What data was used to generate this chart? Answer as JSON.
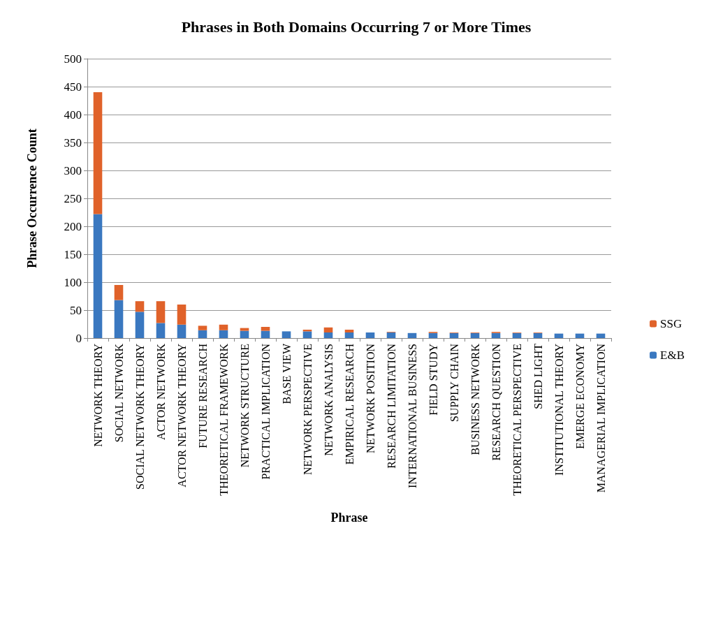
{
  "chart_data": {
    "type": "bar",
    "title": "Phrases in Both Domains Occurring 7 or More Times",
    "xlabel": "Phrase",
    "ylabel": "Phrase Occurrence Count",
    "categories": [
      "NETWORK THEORY",
      "SOCIAL NETWORK",
      "SOCIAL NETWORK THEORY",
      "ACTOR NETWORK",
      "ACTOR NETWORK THEORY",
      "FUTURE RESEARCH",
      "THEORETICAL FRAMEWORK",
      "NETWORK STRUCTURE",
      "PRACTICAL IMPLICATION",
      "BASE VIEW",
      "NETWORK PERSPECTIVE",
      "NETWORK ANALYSIS",
      "EMPIRICAL RESEARCH",
      "NETWORK POSITION",
      "RESEARCH LIMITATION",
      "INTERNATIONAL BUSINESS",
      "FIELD STUDY",
      "SUPPLY CHAIN",
      "BUSINESS NETWORK",
      "RESEARCH QUESTION",
      "THEORETICAL PERSPECTIVE",
      "SHED LIGHT",
      "INSTITUTIONAL THEORY",
      "EMERGE ECONOMY",
      "MANAGERIAL IMPLICATION"
    ],
    "stacked": true,
    "series": [
      {
        "name": "E&B",
        "color": "#3a78c0",
        "values": [
          222,
          68,
          47,
          27,
          24,
          14,
          14,
          13,
          13,
          12,
          12,
          10,
          10,
          10,
          10,
          9,
          9,
          9,
          9,
          9,
          9,
          9,
          8,
          8,
          8
        ]
      },
      {
        "name": "SSG",
        "color": "#e0622a",
        "values": [
          218,
          27,
          19,
          39,
          36,
          8,
          10,
          5,
          7,
          0,
          3,
          9,
          5,
          0,
          1,
          0,
          2,
          1,
          1,
          2,
          1,
          1,
          0,
          0,
          0
        ]
      }
    ],
    "ylim": [
      0,
      500
    ],
    "yticks": [
      0,
      50,
      100,
      150,
      200,
      250,
      300,
      350,
      400,
      450,
      500
    ],
    "grid": "y",
    "legend": "right"
  }
}
